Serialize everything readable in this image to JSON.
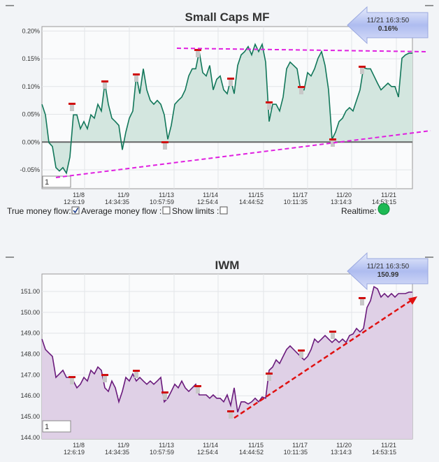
{
  "chart_data": [
    {
      "type": "area",
      "title": "Small Caps MF",
      "x": [
        0,
        5,
        10,
        15,
        20,
        25,
        30,
        35,
        40,
        45,
        50,
        55,
        60,
        65,
        70,
        75,
        80,
        85,
        90,
        95,
        100,
        105,
        110,
        115,
        120,
        125,
        130,
        135,
        140,
        145,
        150,
        155,
        160,
        165,
        170,
        175,
        180,
        185,
        190,
        195,
        200,
        205,
        210,
        215,
        220,
        225,
        230,
        235,
        240,
        245,
        250,
        255,
        260,
        265,
        270,
        275,
        280,
        285,
        290,
        295,
        300,
        305,
        310,
        315,
        320,
        325,
        330,
        335,
        340,
        345,
        350,
        355,
        360,
        365,
        370,
        375,
        380,
        385,
        390,
        395,
        400,
        405,
        410,
        415,
        420,
        425,
        430,
        435,
        440,
        445,
        450,
        455,
        460,
        465,
        470,
        475,
        480,
        485,
        490,
        495,
        500,
        505,
        510,
        515,
        520,
        525,
        530
      ],
      "values": [
        0.068,
        0.049,
        -0.001,
        -0.008,
        -0.046,
        -0.052,
        -0.046,
        -0.056,
        -0.027,
        0.049,
        0.049,
        0.024,
        0.037,
        0.024,
        0.049,
        0.043,
        0.068,
        0.056,
        0.106,
        0.068,
        0.043,
        0.037,
        0.03,
        -0.014,
        0.018,
        0.043,
        0.056,
        0.119,
        0.087,
        0.132,
        0.094,
        0.075,
        0.068,
        0.075,
        0.068,
        0.049,
        0.005,
        0.03,
        0.068,
        0.075,
        0.081,
        0.094,
        0.119,
        0.132,
        0.132,
        0.163,
        0.125,
        0.119,
        0.138,
        0.094,
        0.113,
        0.119,
        0.094,
        0.087,
        0.113,
        0.087,
        0.138,
        0.157,
        0.163,
        0.172,
        0.157,
        0.176,
        0.163,
        0.176,
        0.144,
        0.037,
        0.068,
        0.068,
        0.056,
        0.081,
        0.132,
        0.144,
        0.138,
        0.132,
        0.094,
        0.094,
        0.125,
        0.119,
        0.132,
        0.151,
        0.163,
        0.138,
        0.094,
        0.005,
        0.018,
        0.037,
        0.043,
        0.056,
        0.062,
        0.056,
        0.075,
        0.094,
        0.134,
        0.132,
        0.132,
        0.119,
        0.106,
        0.094,
        0.1,
        0.106,
        0.1,
        0.1,
        0.081,
        0.151,
        0.157,
        0.16,
        0.16
      ],
      "color": "#12775a",
      "fill_color": "#d3e6df",
      "fill_to": "zero",
      "zero_line": true,
      "grid": true,
      "xlim": [
        0,
        530
      ],
      "ylim": [
        -0.084,
        0.208
      ],
      "yticks": [
        {
          "value": 0.2,
          "label": "0.20%"
        },
        {
          "value": 0.15,
          "label": "0.15%"
        },
        {
          "value": 0.1,
          "label": "0.10%"
        },
        {
          "value": 0.05,
          "label": "0.05%"
        },
        {
          "value": 0,
          "label": "0.00%"
        },
        {
          "value": -0.05,
          "label": "-0.05%"
        }
      ],
      "xticks": [
        {
          "value": 61,
          "label": "11/8\n12:6:19"
        },
        {
          "value": 125,
          "label": "11/9\n14:34:35"
        },
        {
          "value": 189,
          "label": "11/13\n10:57:59"
        },
        {
          "value": 252,
          "label": "11/14\n12:54:4"
        },
        {
          "value": 317,
          "label": "11/15\n14:44:52"
        },
        {
          "value": 380,
          "label": "11/17\n10:11:35"
        },
        {
          "value": 443,
          "label": "11/20\n13:14:3"
        },
        {
          "value": 507,
          "label": "11/21\n14:53:15"
        }
      ],
      "badge": {
        "time": "11/21 16:3:50",
        "value": "0.16%"
      },
      "input_value": "1"
    },
    {
      "type": "area",
      "title": "IWM",
      "x": [
        0,
        5,
        10,
        15,
        20,
        25,
        30,
        35,
        40,
        45,
        50,
        55,
        60,
        65,
        70,
        75,
        80,
        85,
        90,
        95,
        100,
        105,
        110,
        115,
        120,
        125,
        130,
        135,
        140,
        145,
        150,
        155,
        160,
        165,
        170,
        175,
        180,
        185,
        190,
        195,
        200,
        205,
        210,
        215,
        220,
        225,
        230,
        235,
        240,
        245,
        250,
        255,
        260,
        265,
        270,
        275,
        280,
        285,
        290,
        295,
        300,
        305,
        310,
        315,
        320,
        325,
        330,
        335,
        340,
        345,
        350,
        355,
        360,
        365,
        370,
        375,
        380,
        385,
        390,
        395,
        400,
        405,
        410,
        415,
        420,
        425,
        430,
        435,
        440,
        445,
        450,
        455,
        460,
        465,
        470,
        475,
        480,
        485,
        490,
        495,
        500,
        505,
        510,
        515,
        520,
        525,
        530
      ],
      "values": [
        148.72,
        148.22,
        148.05,
        147.89,
        146.88,
        147.05,
        147.22,
        146.88,
        146.88,
        146.71,
        146.38,
        146.55,
        146.88,
        146.71,
        147.22,
        147.05,
        147.38,
        147.22,
        146.38,
        146.21,
        146.71,
        146.38,
        145.71,
        146.21,
        146.88,
        146.71,
        147.05,
        146.71,
        146.88,
        146.71,
        146.55,
        146.71,
        146.55,
        146.71,
        146.88,
        145.71,
        145.88,
        146.21,
        146.55,
        146.38,
        146.71,
        146.38,
        146.21,
        146.38,
        146.55,
        146.04,
        146.04,
        146.04,
        145.88,
        146.04,
        145.88,
        145.88,
        145.71,
        146.04,
        145.54,
        146.38,
        145.21,
        145.71,
        145.71,
        145.61,
        145.71,
        145.88,
        145.71,
        145.94,
        145.88,
        147.22,
        147.38,
        147.72,
        147.55,
        147.89,
        148.22,
        148.39,
        148.22,
        148.05,
        147.89,
        147.72,
        147.89,
        148.22,
        148.72,
        148.56,
        148.72,
        148.89,
        148.72,
        148.56,
        148.72,
        148.56,
        148.72,
        148.56,
        148.89,
        148.96,
        149.23,
        149.06,
        149.23,
        150.23,
        150.56,
        151.23,
        151.13,
        150.73,
        150.9,
        150.73,
        150.9,
        150.73,
        150.9,
        150.9,
        150.9,
        150.97,
        150.97
      ],
      "color": "#6a1a7c",
      "fill_color": "#dfd0e6",
      "fill_to": "bottom",
      "zero_line": false,
      "grid": true,
      "xlim": [
        0,
        530
      ],
      "ylim": [
        143.93,
        151.84
      ],
      "yticks": [
        {
          "value": 151,
          "label": "151.00"
        },
        {
          "value": 150,
          "label": "150.00"
        },
        {
          "value": 149,
          "label": "149.00"
        },
        {
          "value": 148,
          "label": "148.00"
        },
        {
          "value": 147,
          "label": "147.00"
        },
        {
          "value": 146,
          "label": "146.00"
        },
        {
          "value": 145,
          "label": "145.00"
        },
        {
          "value": 144,
          "label": "144.00"
        }
      ],
      "xticks": [
        {
          "value": 61,
          "label": "11/8\n12:6:19"
        },
        {
          "value": 125,
          "label": "11/9\n14:34:35"
        },
        {
          "value": 189,
          "label": "11/13\n10:57:59"
        },
        {
          "value": 252,
          "label": "11/14\n12:54:4"
        },
        {
          "value": 317,
          "label": "11/15\n14:44:52"
        },
        {
          "value": 380,
          "label": "11/17\n10:11:35"
        },
        {
          "value": 443,
          "label": "11/20\n13:14:3"
        },
        {
          "value": 507,
          "label": "11/21\n14:53:15"
        }
      ],
      "badge": {
        "time": "11/21 16:3:50",
        "value": "150.99"
      },
      "input_value": "1"
    }
  ],
  "controls": {
    "true_money_flow": "True money flow:",
    "average_money_flow": "Average money flow :",
    "show_limits": "Show limits :",
    "realtime": "Realtime:",
    "checked": [
      true,
      false,
      false
    ]
  }
}
